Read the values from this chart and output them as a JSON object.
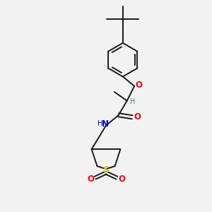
{
  "bg_color": "#f2f2f2",
  "bond_color": "#1a1a1a",
  "atom_colors": {
    "O": "#ff0000",
    "N": "#0000cc",
    "S": "#cccc00",
    "H": "#408080"
  },
  "figsize": [
    3.0,
    3.0
  ],
  "dpi": 100
}
